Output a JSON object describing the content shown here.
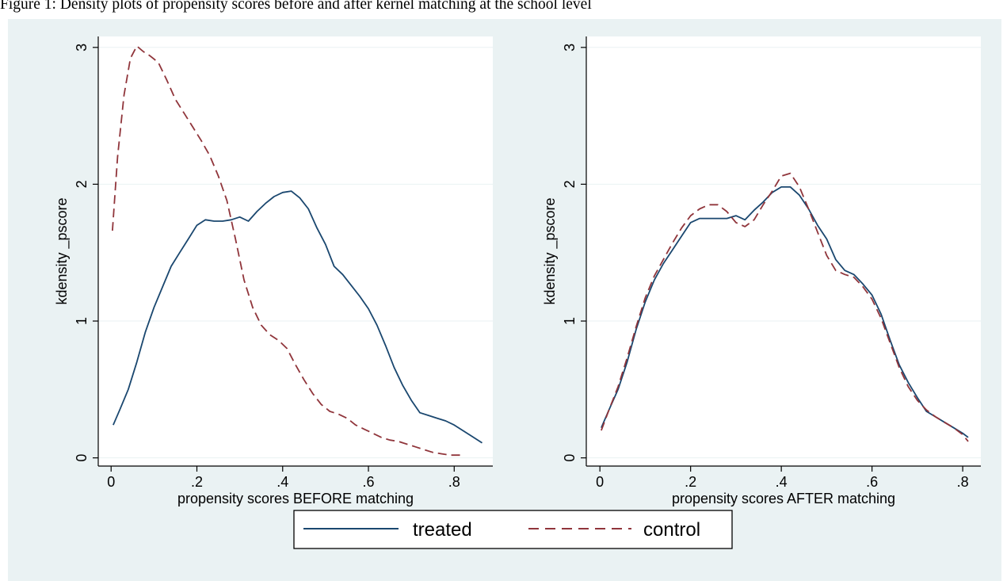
{
  "caption": "Figure 1: Density plots of propensity scores before and after kernel matching at the school level",
  "colors": {
    "outer_background": "#eaf2f3",
    "plot_background": "#ffffff",
    "grid": "#eaf2f3",
    "treated": "#1a476f",
    "control": "#90353b"
  },
  "legend": {
    "placement": "bottom-center",
    "items": [
      {
        "label": "treated",
        "style": "solid",
        "color": "#1a476f"
      },
      {
        "label": "control",
        "style": "dashed",
        "color": "#90353b"
      }
    ]
  },
  "chart_data": [
    {
      "type": "line",
      "title": "",
      "xlabel": "propensity scores BEFORE matching",
      "ylabel": "kdensity _pscore",
      "xlim": [
        -0.03,
        0.89
      ],
      "ylim": [
        -0.06,
        3.08
      ],
      "xticks": [
        0,
        0.2,
        0.4,
        0.6,
        0.8
      ],
      "xtick_labels": [
        "0",
        ".2",
        ".4",
        ".6",
        ".8"
      ],
      "yticks": [
        0,
        1,
        2,
        3
      ],
      "ytick_labels": [
        "0",
        "1",
        "2",
        "3"
      ],
      "grid": true,
      "series": [
        {
          "name": "treated",
          "x": [
            0.005,
            0.02,
            0.04,
            0.06,
            0.08,
            0.1,
            0.12,
            0.14,
            0.16,
            0.18,
            0.2,
            0.22,
            0.24,
            0.26,
            0.28,
            0.3,
            0.32,
            0.34,
            0.36,
            0.38,
            0.4,
            0.42,
            0.44,
            0.46,
            0.48,
            0.5,
            0.52,
            0.54,
            0.56,
            0.58,
            0.6,
            0.62,
            0.64,
            0.66,
            0.68,
            0.7,
            0.72,
            0.74,
            0.76,
            0.78,
            0.8,
            0.82,
            0.84,
            0.865
          ],
          "y": [
            0.24,
            0.35,
            0.5,
            0.7,
            0.92,
            1.1,
            1.25,
            1.4,
            1.5,
            1.6,
            1.7,
            1.74,
            1.73,
            1.73,
            1.74,
            1.76,
            1.73,
            1.8,
            1.86,
            1.91,
            1.94,
            1.95,
            1.9,
            1.82,
            1.68,
            1.56,
            1.4,
            1.34,
            1.26,
            1.18,
            1.09,
            0.97,
            0.82,
            0.66,
            0.53,
            0.42,
            0.33,
            0.31,
            0.29,
            0.27,
            0.24,
            0.2,
            0.16,
            0.11
          ]
        },
        {
          "name": "control",
          "x": [
            0.003,
            0.015,
            0.03,
            0.045,
            0.06,
            0.075,
            0.09,
            0.11,
            0.13,
            0.15,
            0.17,
            0.19,
            0.21,
            0.23,
            0.25,
            0.27,
            0.29,
            0.31,
            0.33,
            0.35,
            0.37,
            0.39,
            0.41,
            0.43,
            0.45,
            0.47,
            0.49,
            0.51,
            0.53,
            0.55,
            0.57,
            0.59,
            0.61,
            0.63,
            0.65,
            0.67,
            0.69,
            0.71,
            0.73,
            0.75,
            0.77,
            0.79,
            0.815
          ],
          "y": [
            1.66,
            2.2,
            2.65,
            2.92,
            3.01,
            2.97,
            2.94,
            2.89,
            2.76,
            2.62,
            2.52,
            2.42,
            2.32,
            2.21,
            2.06,
            1.88,
            1.6,
            1.3,
            1.1,
            0.97,
            0.9,
            0.86,
            0.8,
            0.68,
            0.57,
            0.47,
            0.39,
            0.34,
            0.32,
            0.29,
            0.24,
            0.21,
            0.18,
            0.15,
            0.13,
            0.12,
            0.1,
            0.08,
            0.06,
            0.04,
            0.03,
            0.02,
            0.02
          ]
        }
      ]
    },
    {
      "type": "line",
      "title": "",
      "xlabel": "propensity scores AFTER matching",
      "ylabel": "kdensity _pscore",
      "xlim": [
        -0.03,
        0.84
      ],
      "ylim": [
        -0.06,
        3.08
      ],
      "xticks": [
        0,
        0.2,
        0.4,
        0.6,
        0.8
      ],
      "xtick_labels": [
        "0",
        ".2",
        ".4",
        ".6",
        ".8"
      ],
      "yticks": [
        0,
        1,
        2,
        3
      ],
      "ytick_labels": [
        "0",
        "1",
        "2",
        "3"
      ],
      "grid": true,
      "series": [
        {
          "name": "treated",
          "x": [
            0.003,
            0.02,
            0.04,
            0.06,
            0.08,
            0.1,
            0.12,
            0.14,
            0.16,
            0.18,
            0.2,
            0.22,
            0.24,
            0.26,
            0.28,
            0.3,
            0.32,
            0.34,
            0.36,
            0.38,
            0.4,
            0.42,
            0.44,
            0.46,
            0.48,
            0.5,
            0.52,
            0.54,
            0.56,
            0.58,
            0.6,
            0.62,
            0.64,
            0.66,
            0.68,
            0.7,
            0.72,
            0.74,
            0.76,
            0.78,
            0.8,
            0.812
          ],
          "y": [
            0.22,
            0.35,
            0.5,
            0.7,
            0.94,
            1.14,
            1.3,
            1.42,
            1.52,
            1.62,
            1.72,
            1.75,
            1.75,
            1.75,
            1.75,
            1.77,
            1.74,
            1.81,
            1.87,
            1.94,
            1.98,
            1.98,
            1.92,
            1.82,
            1.7,
            1.6,
            1.45,
            1.37,
            1.34,
            1.27,
            1.19,
            1.05,
            0.86,
            0.68,
            0.55,
            0.44,
            0.34,
            0.3,
            0.26,
            0.22,
            0.18,
            0.15
          ]
        },
        {
          "name": "control",
          "x": [
            0.003,
            0.02,
            0.04,
            0.06,
            0.08,
            0.1,
            0.12,
            0.14,
            0.16,
            0.18,
            0.2,
            0.22,
            0.24,
            0.26,
            0.28,
            0.3,
            0.32,
            0.34,
            0.36,
            0.38,
            0.4,
            0.42,
            0.44,
            0.46,
            0.48,
            0.5,
            0.52,
            0.54,
            0.56,
            0.58,
            0.6,
            0.62,
            0.64,
            0.66,
            0.68,
            0.7,
            0.72,
            0.74,
            0.76,
            0.78,
            0.8,
            0.812
          ],
          "y": [
            0.2,
            0.35,
            0.52,
            0.73,
            0.96,
            1.17,
            1.33,
            1.45,
            1.57,
            1.68,
            1.77,
            1.82,
            1.85,
            1.85,
            1.8,
            1.72,
            1.69,
            1.74,
            1.85,
            1.95,
            2.06,
            2.08,
            1.98,
            1.82,
            1.65,
            1.48,
            1.37,
            1.34,
            1.32,
            1.25,
            1.16,
            1.02,
            0.84,
            0.66,
            0.52,
            0.42,
            0.35,
            0.3,
            0.26,
            0.22,
            0.17,
            0.12
          ]
        }
      ]
    }
  ]
}
